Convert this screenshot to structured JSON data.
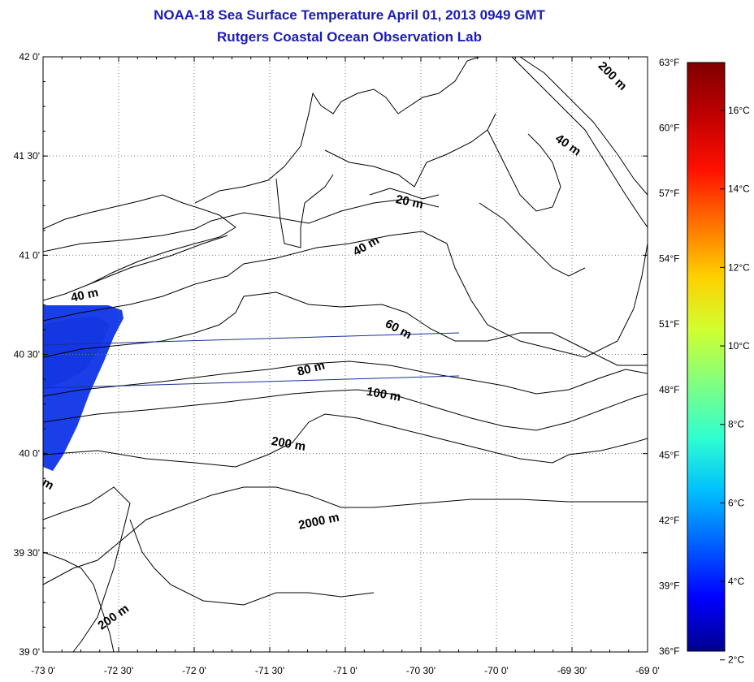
{
  "title": {
    "line1": "NOAA-18 Sea Surface Temperature April 01, 2013 0949 GMT",
    "line2": "Rutgers Coastal Ocean Observation Lab"
  },
  "map": {
    "lon_range": [
      -73.0,
      -69.0
    ],
    "lat_range": [
      39.0,
      42.0
    ],
    "grid": true,
    "x_ticks": [
      {
        "lon": -73.0,
        "label": "-73 0'"
      },
      {
        "lon": -72.5,
        "label": "-72 30'"
      },
      {
        "lon": -72.0,
        "label": "-72 0'"
      },
      {
        "lon": -71.5,
        "label": "-71 30'"
      },
      {
        "lon": -71.0,
        "label": "-71 0'"
      },
      {
        "lon": -70.5,
        "label": "-70 30'"
      },
      {
        "lon": -70.0,
        "label": "-70 0'"
      },
      {
        "lon": -69.5,
        "label": "-69 30'"
      },
      {
        "lon": -69.0,
        "label": "-69 0'"
      }
    ],
    "y_ticks": [
      {
        "lat": 42.0,
        "label": "42 0'"
      },
      {
        "lat": 41.5,
        "label": "41 30'"
      },
      {
        "lat": 41.0,
        "label": "41 0'"
      },
      {
        "lat": 40.5,
        "label": "40 30'"
      },
      {
        "lat": 40.0,
        "label": "40 0'"
      },
      {
        "lat": 39.5,
        "label": "39 30'"
      },
      {
        "lat": 39.0,
        "label": "39 0'"
      }
    ],
    "fahrenheit_ticks": [
      {
        "f": 63,
        "label": "63°F"
      },
      {
        "f": 60,
        "label": "60°F"
      },
      {
        "f": 57,
        "label": "57°F"
      },
      {
        "f": 54,
        "label": "54°F"
      },
      {
        "f": 51,
        "label": "51°F"
      },
      {
        "f": 48,
        "label": "48°F"
      },
      {
        "f": 45,
        "label": "45°F"
      },
      {
        "f": 42,
        "label": "42°F"
      },
      {
        "f": 39,
        "label": "39°F"
      },
      {
        "f": 36,
        "label": "36°F"
      }
    ],
    "contour_labels": [
      {
        "text": "200 m",
        "lon": -69.25,
        "lat": 41.89,
        "angle": 45
      },
      {
        "text": "40 m",
        "lon": -69.54,
        "lat": 41.54,
        "angle": 35
      },
      {
        "text": "20 m",
        "lon": -70.58,
        "lat": 41.25,
        "angle": 12
      },
      {
        "text": "40 m",
        "lon": -70.85,
        "lat": 41.03,
        "angle": -30
      },
      {
        "text": "40 m",
        "lon": -72.72,
        "lat": 40.78,
        "angle": -12
      },
      {
        "text": "60 m",
        "lon": -70.66,
        "lat": 40.61,
        "angle": 28
      },
      {
        "text": "80 m",
        "lon": -71.22,
        "lat": 40.41,
        "angle": -15
      },
      {
        "text": "100 m",
        "lon": -70.75,
        "lat": 40.28,
        "angle": 10
      },
      {
        "text": "200 m",
        "lon": -71.38,
        "lat": 40.03,
        "angle": 10
      },
      {
        "text": "2000 m",
        "lon": -71.17,
        "lat": 39.64,
        "angle": -12
      },
      {
        "text": "200 m",
        "lon": -72.52,
        "lat": 39.16,
        "angle": -35
      },
      {
        "text": "m",
        "lon": -72.98,
        "lat": 39.83,
        "angle": 30
      }
    ]
  },
  "colorbar": {
    "celsius_ticks": [
      {
        "c": 2,
        "label": "2°C"
      },
      {
        "c": 4,
        "label": "4°C"
      },
      {
        "c": 6,
        "label": "6°C"
      },
      {
        "c": 8,
        "label": "8°C"
      },
      {
        "c": 10,
        "label": "10°C"
      },
      {
        "c": 12,
        "label": "12°C"
      },
      {
        "c": 14,
        "label": "14°C"
      },
      {
        "c": 16,
        "label": "16°C"
      }
    ],
    "range_f": [
      36,
      63
    ],
    "colors": [
      "#00008f",
      "#0000ff",
      "#0060ff",
      "#00c0ff",
      "#30ffd0",
      "#80ff80",
      "#d0ff30",
      "#ffd000",
      "#ff7000",
      "#ff1000",
      "#c00000",
      "#800000"
    ]
  }
}
